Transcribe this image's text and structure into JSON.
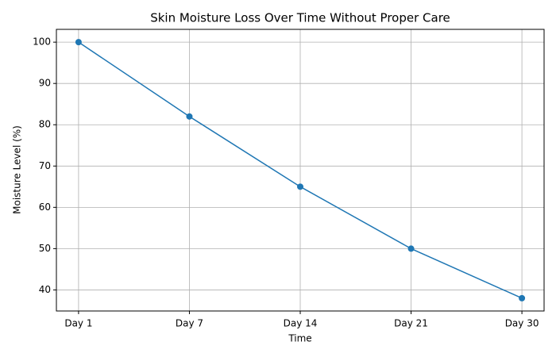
{
  "chart_data": {
    "type": "line",
    "title": "Skin Moisture Loss Over Time Without Proper Care",
    "x_label": "Time",
    "y_label": "Moisture Level (%)",
    "categories": [
      "Day 1",
      "Day 7",
      "Day 14",
      "Day 21",
      "Day 30"
    ],
    "series": [
      {
        "color": "#1f77b4",
        "values": [
          100,
          82,
          65,
          50,
          38
        ]
      }
    ],
    "ylim": [
      34.9,
      103.1
    ],
    "yticks": [
      40,
      50,
      60,
      70,
      80,
      90,
      100
    ],
    "grid": true,
    "markers": true
  }
}
